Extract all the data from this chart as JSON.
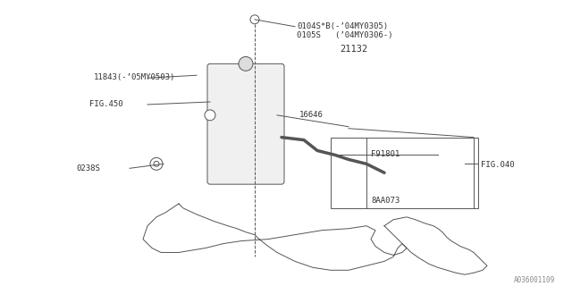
{
  "bg_color": "#ffffff",
  "line_color": "#555555",
  "text_color": "#333333",
  "fig_width": 6.4,
  "fig_height": 3.2,
  "dpi": 100,
  "title": "",
  "watermark": "A036001109",
  "labels": {
    "top_right1": "0104S*B(-’04MY0305)",
    "top_right2": "0105S   (’04MY0306-)",
    "left_top": "11843(-’05MY0503)",
    "fig450": "FIG.450",
    "part21132": "21132",
    "part16646": "16646",
    "partF91801": "F91801",
    "fig040": "FIG.040",
    "part8AA073": "8AA073",
    "part0238S": "0238S"
  }
}
